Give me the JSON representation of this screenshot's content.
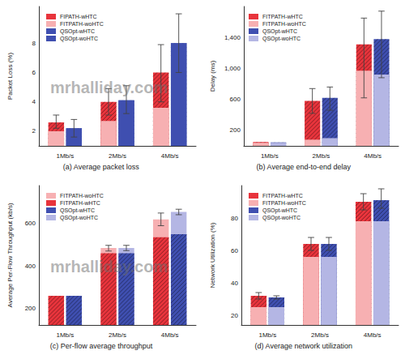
{
  "chart_data": [
    {
      "type": "bar",
      "title": "(a) Average packet loss",
      "y_label": "Packet Loss (%)",
      "categories": [
        "1Mb/s",
        "2Mb/s",
        "4Mb/s"
      ],
      "series": [
        {
          "name": "FIPATH-wHTC",
          "color": "#e8343c",
          "line_style": "hatched",
          "values": [
            2.6,
            4.0,
            6.0
          ],
          "errors": [
            [
              2.2,
              3.1
            ],
            [
              3.1,
              4.9
            ],
            [
              4.0,
              7.9
            ]
          ]
        },
        {
          "name": "FITPATH-woHTC",
          "color": "#f7b0b2",
          "values": [
            2.0,
            2.7,
            3.6
          ]
        },
        {
          "name": "QSOpt-wHTC",
          "color": "#3f4fb0",
          "line_style": "hatched",
          "values": [
            2.2,
            4.1,
            8.0
          ],
          "errors": [
            [
              1.6,
              2.8
            ],
            [
              3.2,
              5.1
            ],
            [
              6.0,
              10.0
            ]
          ]
        },
        {
          "name": "QSOpt-woHTC",
          "color": "#3f4fb0",
          "values": [
            2.2,
            4.1,
            8.0
          ]
        }
      ],
      "ylim": [
        1,
        10.5
      ],
      "yticks": [
        2,
        4,
        6,
        8
      ],
      "grid": false,
      "legend": "upper left",
      "annotations": [
        "mrhalliday.com"
      ]
    },
    {
      "type": "bar",
      "title": "(b) Average end-to-end delay",
      "y_label": "Delay (ms)",
      "categories": [
        "1Mb/s",
        "2Mb/s",
        "4Mb/s"
      ],
      "series": [
        {
          "name": "FITPATH-wHTC",
          "color": "#e8343c",
          "line_style": "hatched",
          "values": [
            50,
            580,
            1310
          ],
          "errors": [
            null,
            [
              420,
              740
            ],
            [
              620,
              1650
            ]
          ]
        },
        {
          "name": "FITPATH-woHTC",
          "color": "#f7b0b2",
          "values": [
            40,
            80,
            970
          ]
        },
        {
          "name": "QSOpt-wHTC",
          "color": "#3f4fb0",
          "line_style": "hatched",
          "values": [
            45,
            620,
            1380
          ],
          "errors": [
            null,
            [
              460,
              760
            ],
            [
              880,
              1740
            ]
          ]
        },
        {
          "name": "QSOpt-woHTC",
          "color": "#b4b6e4",
          "values": [
            40,
            100,
            920
          ]
        }
      ],
      "ylim": [
        0,
        1800
      ],
      "yticks": [
        200,
        600,
        {
          "value": 1000,
          "label": "1,000"
        },
        {
          "value": 1400,
          "label": "1,400"
        }
      ],
      "grid": false,
      "legend": "upper left"
    },
    {
      "type": "bar",
      "title": "(c) Per-flow average throughput",
      "y_label": "Average Per-Flow Throughput (kb/s)",
      "categories": [
        "1Mb/s",
        "2Mb/s",
        "4Mb/s"
      ],
      "series": [
        {
          "name": "FITPATH-woHTC",
          "color": "#f7b0b2",
          "values": [
            258,
            485,
            620
          ],
          "errors": [
            null,
            [
              470,
              497
            ],
            [
              590,
              650
            ]
          ]
        },
        {
          "name": "FITPATH-wHTC",
          "color": "#e8343c",
          "line_style": "hatched",
          "values": [
            258,
            460,
            535
          ]
        },
        {
          "name": "QSOpt-wHTC",
          "color": "#3f4fb0",
          "line_style": "hatched",
          "values": [
            258,
            460,
            550
          ]
        },
        {
          "name": "QSOpt-woHTC",
          "color": "#b4b6e4",
          "values": [
            258,
            485,
            655
          ],
          "errors": [
            null,
            [
              472,
              497
            ],
            [
              642,
              668
            ]
          ]
        }
      ],
      "ylim": [
        120,
        780
      ],
      "yticks": [
        200,
        400,
        600
      ],
      "grid": false,
      "legend": "upper left",
      "annotations": [
        "mrhalliday.com"
      ]
    },
    {
      "type": "bar",
      "title": "(d) Average network utilization",
      "y_label": "Network Utilization (%)",
      "categories": [
        "1Mb/s",
        "2Mb/s",
        "4Mb/s"
      ],
      "series": [
        {
          "name": "FITPATH-wHTC",
          "color": "#e8343c",
          "line_style": "hatched",
          "values": [
            32,
            64,
            90
          ],
          "errors": [
            [
              30,
              34
            ],
            [
              60,
              68
            ],
            [
              85,
              95
            ]
          ]
        },
        {
          "name": "FITPATH-woHTC",
          "color": "#f7b0b2",
          "values": [
            25,
            56,
            78
          ]
        },
        {
          "name": "QSOpt-wHTC",
          "color": "#3f4fb0",
          "line_style": "hatched",
          "values": [
            31,
            64,
            91
          ],
          "errors": [
            [
              30,
              32
            ],
            [
              60,
              68
            ],
            [
              86,
              98
            ]
          ]
        },
        {
          "name": "QSOpt-woHTC",
          "color": "#b4b6e4",
          "values": [
            25,
            56,
            78
          ]
        }
      ],
      "ylim": [
        14,
        100
      ],
      "yticks": [
        20,
        40,
        60,
        80
      ],
      "grid": false,
      "legend": "upper left"
    }
  ]
}
